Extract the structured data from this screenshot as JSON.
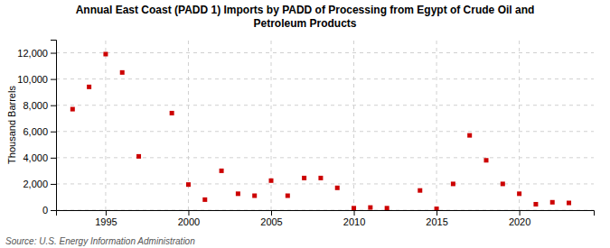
{
  "chart_data": {
    "type": "scatter",
    "title": "Annual East Coast (PADD 1) Imports by PADD of Processing from Egypt of Crude Oil and\nPetroleum Products",
    "y_label": "Thousand Barrels",
    "annotations": [
      "Source: U.S. Energy Information Administration"
    ],
    "x": [
      1993,
      1994,
      1995,
      1996,
      1997,
      1999,
      2000,
      2001,
      2002,
      2003,
      2004,
      2005,
      2006,
      2007,
      2008,
      2009,
      2010,
      2011,
      2012,
      2014,
      2015,
      2016,
      2017,
      2018,
      2019,
      2020,
      2021,
      2022,
      2023
    ],
    "values": [
      7700,
      9400,
      11900,
      10500,
      4100,
      7400,
      1950,
      800,
      3000,
      1250,
      1100,
      2250,
      1100,
      2450,
      2450,
      1700,
      150,
      200,
      150,
      1500,
      100,
      2000,
      5700,
      3800,
      2000,
      1250,
      450,
      600,
      550
    ],
    "color": "#cc0000",
    "marker": "square",
    "xlim": [
      1992,
      2024.5
    ],
    "xticks": [
      1995,
      2000,
      2005,
      2010,
      2015,
      2020
    ],
    "ylim": [
      0,
      13000
    ],
    "yticks": [
      0,
      {
        "value": 2000,
        "label": "2,000"
      },
      {
        "value": 4000,
        "label": "4,000"
      },
      {
        "value": 6000,
        "label": "6,000"
      },
      {
        "value": 8000,
        "label": "8,000"
      },
      {
        "value": 10000,
        "label": "10,000"
      },
      {
        "value": 12000,
        "label": "12,000"
      }
    ],
    "grid": true
  }
}
